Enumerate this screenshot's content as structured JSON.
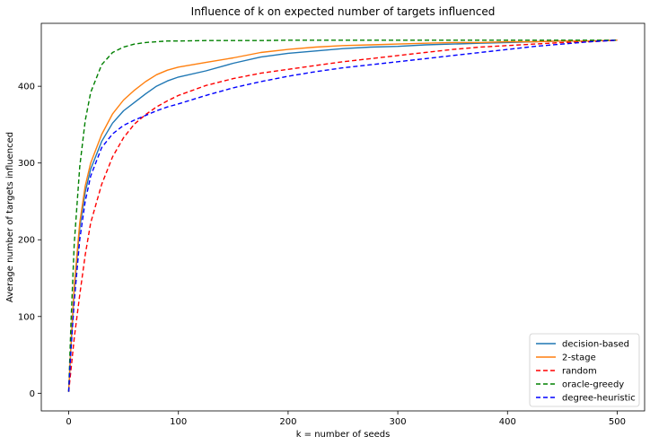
{
  "chart_data": {
    "type": "line",
    "title": "Influence of k on expected number of targets influenced",
    "xlabel": "k = number of seeds",
    "ylabel": "Average number of targets influenced",
    "xlim": [
      -25,
      525
    ],
    "ylim": [
      -23,
      482
    ],
    "xticks": [
      0,
      100,
      200,
      300,
      400,
      500
    ],
    "yticks": [
      0,
      100,
      200,
      300,
      400
    ],
    "grid": false,
    "legend_position": "lower-right",
    "x": [
      0,
      2,
      5,
      10,
      15,
      20,
      30,
      40,
      50,
      60,
      70,
      80,
      90,
      100,
      125,
      150,
      175,
      200,
      225,
      250,
      275,
      300,
      325,
      350,
      375,
      400,
      425,
      450,
      475,
      500
    ],
    "series": [
      {
        "name": "decision-based",
        "style": "solid",
        "color": "#1f77b4",
        "values": [
          2,
          60,
          135,
          215,
          262,
          292,
          328,
          352,
          368,
          379,
          390,
          400,
          407,
          412,
          420,
          430,
          438,
          443,
          446,
          449,
          451,
          452,
          454,
          455,
          456,
          457,
          458,
          459,
          459,
          460
        ]
      },
      {
        "name": "2-stage",
        "style": "solid",
        "color": "#ff7f0e",
        "values": [
          2,
          62,
          140,
          222,
          270,
          300,
          337,
          364,
          382,
          395,
          406,
          415,
          421,
          425,
          431,
          437,
          444,
          448,
          451,
          453,
          454,
          455,
          456,
          457,
          457,
          458,
          458,
          459,
          459,
          460
        ]
      },
      {
        "name": "random",
        "style": "dashed",
        "color": "#ff0000",
        "values": [
          2,
          30,
          72,
          128,
          180,
          222,
          272,
          308,
          333,
          351,
          363,
          373,
          381,
          388,
          401,
          410,
          417,
          422,
          427,
          432,
          436,
          440,
          444,
          448,
          451,
          453,
          455,
          457,
          458,
          460
        ]
      },
      {
        "name": "oracle-greedy",
        "style": "dashed",
        "color": "#008000",
        "values": [
          2,
          90,
          195,
          295,
          355,
          392,
          428,
          444,
          451,
          455,
          457,
          458,
          459,
          459,
          459.5,
          459.5,
          459.5,
          460,
          460,
          460,
          460,
          460,
          460,
          460,
          460,
          460,
          460,
          460,
          460,
          460
        ]
      },
      {
        "name": "degree-heuristic",
        "style": "dashed",
        "color": "#0000ff",
        "values": [
          2,
          55,
          120,
          200,
          250,
          283,
          320,
          338,
          349,
          356,
          362,
          368,
          373,
          377,
          388,
          398,
          406,
          413,
          419,
          424,
          428,
          432,
          436,
          440,
          444,
          448,
          452,
          455,
          458,
          460
        ]
      }
    ]
  }
}
